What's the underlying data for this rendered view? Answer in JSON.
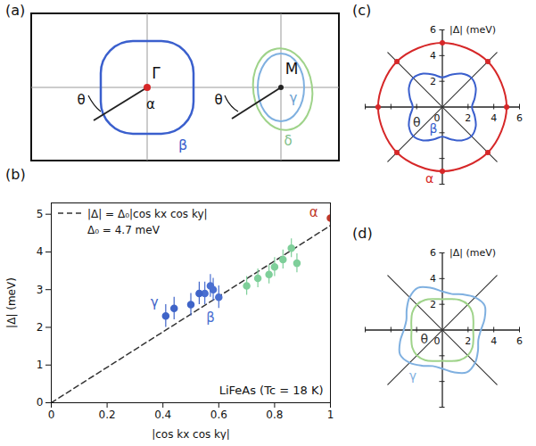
{
  "diagram": {
    "panel": "(a)",
    "labels": {
      "gamma_point": "Γ",
      "alpha": "α",
      "beta": "β",
      "m_point": "M",
      "gamma": "γ",
      "delta": "δ",
      "theta": "θ"
    }
  },
  "chart_data": [
    {
      "type": "scatter",
      "panel": "(b)",
      "xlabel": "|cos kx cos ky|",
      "ylabel": "|Δ| (meV)",
      "xlim": [
        0,
        1
      ],
      "xticks": [
        0,
        0.2,
        0.4,
        0.6,
        0.8,
        1
      ],
      "ylim": [
        0,
        5.3
      ],
      "yticks": [
        0,
        1,
        2,
        3,
        4,
        5
      ],
      "legend": "top-left",
      "legend_note": "Δ₀ = 4.7 meV",
      "note": "LiFeAs (Tc = 18 K)",
      "series": [
        {
          "name": "|Δ| = Δ₀|cos kx cos ky|",
          "type": "line",
          "line_style": "dashed",
          "color": "#333333",
          "x": [
            0,
            1
          ],
          "values": [
            0,
            4.7
          ]
        },
        {
          "type": "scatter",
          "marker": "circle",
          "color": "#c0392b",
          "x": [
            1
          ],
          "values": [
            4.9
          ],
          "errors": [
            0.25
          ]
        },
        {
          "type": "scatter",
          "marker": "circle",
          "color": "#4a6fd1",
          "x": [
            0.55,
            0.57,
            0.58,
            0.6
          ],
          "values": [
            2.9,
            3.1,
            3.0,
            2.8
          ],
          "errors": [
            0.3,
            0.3,
            0.3,
            0.3
          ]
        },
        {
          "type": "scatter",
          "marker": "circle",
          "color": "#3f64c8",
          "x": [
            0.41,
            0.44,
            0.5,
            0.53
          ],
          "values": [
            2.3,
            2.5,
            2.6,
            2.9
          ],
          "errors": [
            0.3,
            0.3,
            0.3,
            0.3
          ]
        },
        {
          "type": "scatter",
          "marker": "circle",
          "color": "#7fcf9a",
          "x": [
            0.7,
            0.74,
            0.78,
            0.8,
            0.83,
            0.86,
            0.88
          ],
          "values": [
            3.1,
            3.3,
            3.4,
            3.6,
            3.8,
            4.1,
            3.7
          ],
          "errors": [
            0.25,
            0.25,
            0.25,
            0.25,
            0.25,
            0.25,
            0.25
          ]
        }
      ],
      "annotations": [
        {
          "text": "α",
          "x": 0.94,
          "y": 5.05,
          "color": "#c0392b"
        },
        {
          "text": "β",
          "x": 0.57,
          "y": 2.25,
          "color": "#4a6fd1"
        },
        {
          "text": "γ",
          "x": 0.37,
          "y": 2.65,
          "color": "#3f64c8"
        }
      ]
    },
    {
      "type": "polar",
      "panel": "(c)",
      "rlabel": "|Δ| (meV)",
      "rlim": [
        0,
        6
      ],
      "rticks": [
        0,
        2,
        4,
        6
      ],
      "series": [
        {
          "color": "#d62728",
          "marker": "circle",
          "theta": [
            0,
            45,
            90,
            135,
            180,
            225,
            270,
            315
          ],
          "values": [
            5.0,
            5.0,
            5.0,
            5.0,
            5.0,
            5.0,
            5.0,
            5.0
          ]
        },
        {
          "color": "#3a5fcd",
          "theta": [
            0,
            15,
            30,
            45,
            60,
            75,
            90,
            105,
            120,
            135,
            150,
            165,
            180,
            195,
            210,
            225,
            240,
            255,
            270,
            285,
            300,
            315,
            330,
            345
          ],
          "values": [
            2.3,
            2.6,
            3.0,
            3.2,
            3.0,
            2.6,
            2.3,
            2.6,
            3.0,
            3.2,
            3.0,
            2.6,
            2.3,
            2.6,
            3.0,
            3.2,
            3.0,
            2.6,
            2.3,
            2.6,
            3.0,
            3.2,
            3.0,
            2.6
          ]
        }
      ],
      "annotations": [
        {
          "text": "θ",
          "x": -2.0,
          "y": -1.2,
          "color": "#333333"
        },
        {
          "text": "α",
          "x": -1.0,
          "y": -5.6,
          "color": "#d62728"
        },
        {
          "text": "β",
          "x": -0.7,
          "y": -1.7,
          "color": "#3a5fcd"
        }
      ]
    },
    {
      "type": "polar",
      "panel": "(d)",
      "rlabel": "|Δ| (meV)",
      "rlim": [
        0,
        6
      ],
      "rticks": [
        0,
        2,
        4,
        6
      ],
      "series": [
        {
          "color": "#7fb0e0",
          "theta": [
            0,
            15,
            30,
            45,
            60,
            75,
            90,
            105,
            120,
            135,
            150,
            165,
            180,
            195,
            210,
            225,
            240,
            255,
            270,
            285,
            300,
            315,
            330,
            345
          ],
          "values": [
            3.0,
            3.4,
            3.8,
            3.6,
            3.2,
            2.9,
            3.0,
            3.4,
            3.8,
            3.6,
            3.2,
            2.9,
            3.0,
            3.4,
            3.8,
            3.6,
            3.2,
            2.9,
            3.0,
            3.4,
            3.8,
            3.6,
            3.2,
            2.9
          ]
        },
        {
          "color": "#9fd38a",
          "theta": [
            0,
            15,
            30,
            45,
            60,
            75,
            90,
            105,
            120,
            135,
            150,
            165,
            180,
            195,
            210,
            225,
            240,
            255,
            270,
            285,
            300,
            315,
            330,
            345
          ],
          "values": [
            2.4,
            2.5,
            2.7,
            2.8,
            2.7,
            2.5,
            2.4,
            2.5,
            2.7,
            2.8,
            2.7,
            2.5,
            2.4,
            2.5,
            2.7,
            2.8,
            2.7,
            2.5,
            2.4,
            2.5,
            2.7,
            2.8,
            2.7,
            2.5
          ]
        }
      ],
      "annotations": [
        {
          "text": "θ",
          "x": -1.4,
          "y": -0.7,
          "color": "#333333"
        },
        {
          "text": "γ",
          "x": -2.3,
          "y": -3.6,
          "color": "#7fb0e0"
        }
      ]
    }
  ]
}
